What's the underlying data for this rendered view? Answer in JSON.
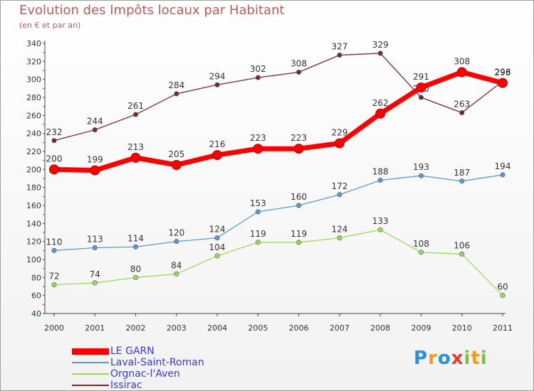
{
  "title": "Evolution des Impôts locaux par Habitant",
  "subtitle": "(en € et par an)",
  "brand": "Proxiti",
  "brand_letters": [
    {
      "ch": "P",
      "color": "#2a8fd6"
    },
    {
      "ch": "r",
      "color": "#f29a1e"
    },
    {
      "ch": "o",
      "color": "#2a8fd6"
    },
    {
      "ch": "x",
      "color": "#e53b2e"
    },
    {
      "ch": "i",
      "color": "#7cc242"
    },
    {
      "ch": "t",
      "color": "#f29a1e"
    },
    {
      "ch": "i",
      "color": "#7cc242"
    }
  ],
  "chart_data": {
    "type": "line",
    "title": "Evolution des Impôts locaux par Habitant",
    "subtitle": "(en € et par an)",
    "xlabel": "",
    "ylabel": "",
    "x": [
      "2000",
      "2001",
      "2002",
      "2003",
      "2004",
      "2005",
      "2006",
      "2007",
      "2008",
      "2009",
      "2010",
      "2011"
    ],
    "ylim": [
      40,
      340
    ],
    "yticks": [
      40,
      60,
      80,
      100,
      120,
      140,
      160,
      180,
      200,
      220,
      240,
      260,
      280,
      300,
      320,
      340
    ],
    "grid": false,
    "legend_position": "bottom-left",
    "series": [
      {
        "name": "LE GARN",
        "color": "#ff0000",
        "emphasis": true,
        "values": [
          200,
          199,
          213,
          205,
          216,
          223,
          223,
          229,
          262,
          291,
          308,
          296
        ]
      },
      {
        "name": "Laval-Saint-Roman",
        "color": "#5b9bd5",
        "emphasis": false,
        "values": [
          110,
          113,
          114,
          120,
          124,
          153,
          160,
          172,
          188,
          193,
          187,
          194
        ]
      },
      {
        "name": "Orgnac-l'Aven",
        "color": "#99dd55",
        "emphasis": false,
        "values": [
          72,
          74,
          80,
          84,
          104,
          119,
          119,
          124,
          133,
          108,
          106,
          60
        ]
      },
      {
        "name": "Issirac",
        "color": "#7a2a2a",
        "emphasis": false,
        "values": [
          232,
          244,
          261,
          284,
          294,
          302,
          308,
          327,
          329,
          280,
          263,
          298
        ]
      }
    ]
  }
}
